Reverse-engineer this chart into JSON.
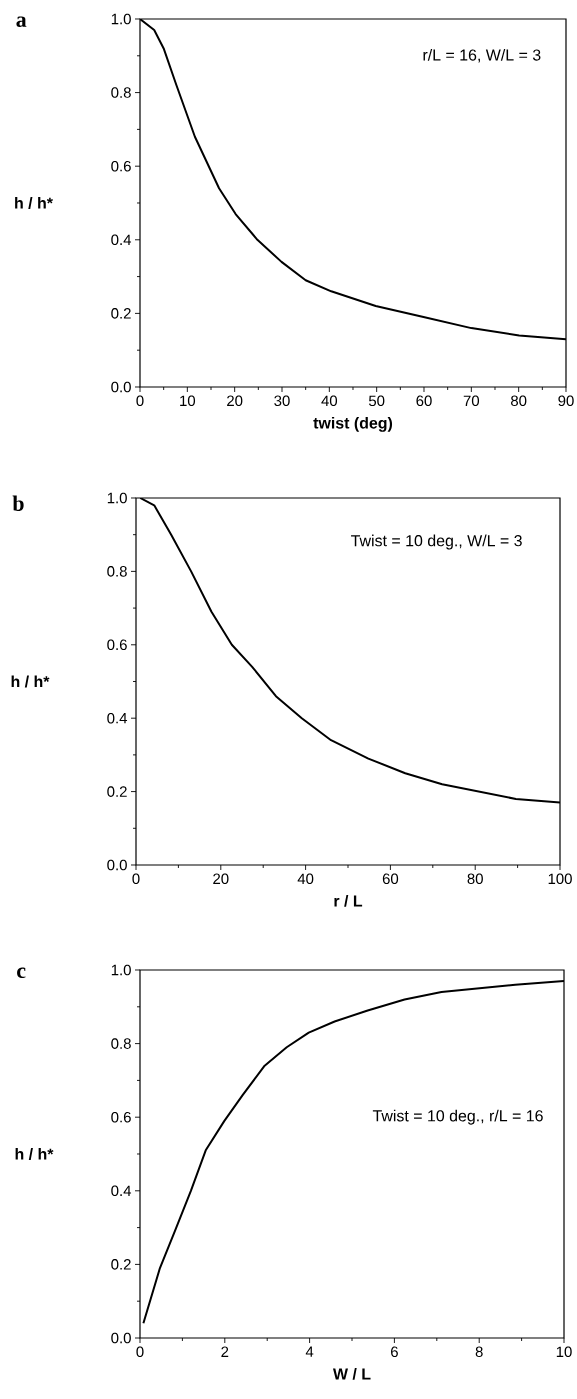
{
  "chart_data": [
    {
      "type": "line",
      "title": "a",
      "xlabel": "twist   (deg)",
      "ylabel": "h / h*",
      "annotations": [
        "r/L = 16,    W/L = 3"
      ],
      "xlim": [
        0,
        90
      ],
      "xticks": [
        0,
        10,
        20,
        30,
        40,
        50,
        60,
        70,
        80,
        90
      ],
      "ylim": [
        0,
        1
      ],
      "yticks": [
        {
          "value": 0,
          "label": "0.0"
        },
        {
          "value": 0.2,
          "label": "0.2"
        },
        {
          "value": 0.4,
          "label": "0.4"
        },
        {
          "value": 0.6,
          "label": "0.6"
        },
        {
          "value": 0.8,
          "label": "0.8"
        },
        {
          "value": 1,
          "label": "1.0"
        }
      ],
      "series": [
        {
          "color": "#000000",
          "x": [
            0,
            3,
            5,
            7.7,
            11.6,
            16.7,
            20.2,
            24.8,
            29.9,
            35,
            40.4,
            49.8,
            59.9,
            70,
            80.1,
            90
          ],
          "values": [
            1.0,
            0.97,
            0.92,
            0.82,
            0.68,
            0.54,
            0.47,
            0.4,
            0.34,
            0.29,
            0.26,
            0.22,
            0.19,
            0.16,
            0.14,
            0.13
          ]
        }
      ]
    },
    {
      "type": "line",
      "title": "b",
      "xlabel": "r / L",
      "ylabel": "h / h*",
      "annotations": [
        "Twist = 10 deg.,   W/L = 3"
      ],
      "xlim": [
        0,
        100
      ],
      "xticks": [
        0,
        20,
        40,
        60,
        80,
        100
      ],
      "ylim": [
        0,
        1
      ],
      "yticks": [
        {
          "value": 0,
          "label": "0.0"
        },
        {
          "value": 0.2,
          "label": "0.2"
        },
        {
          "value": 0.4,
          "label": "0.4"
        },
        {
          "value": 0.6,
          "label": "0.6"
        },
        {
          "value": 0.8,
          "label": "0.8"
        },
        {
          "value": 1,
          "label": "1.0"
        }
      ],
      "series": [
        {
          "color": "#000000",
          "x": [
            1,
            4.3,
            8.3,
            13,
            17.8,
            22.6,
            27.4,
            33,
            39.1,
            46,
            54.8,
            63.5,
            72.2,
            80.9,
            89.6,
            100
          ],
          "values": [
            1.0,
            0.98,
            0.9,
            0.8,
            0.69,
            0.6,
            0.54,
            0.46,
            0.4,
            0.34,
            0.29,
            0.25,
            0.22,
            0.2,
            0.18,
            0.17
          ]
        }
      ]
    },
    {
      "type": "line",
      "title": "c",
      "xlabel": "W / L",
      "ylabel": "h / h*",
      "annotations": [
        "Twist = 10 deg.,   r/L = 16"
      ],
      "xlim": [
        0,
        10
      ],
      "xticks": [
        0,
        2,
        4,
        6,
        8,
        10
      ],
      "ylim": [
        0,
        1
      ],
      "yticks": [
        {
          "value": 0,
          "label": "0.0"
        },
        {
          "value": 0.2,
          "label": "0.2"
        },
        {
          "value": 0.4,
          "label": "0.4"
        },
        {
          "value": 0.6,
          "label": "0.6"
        },
        {
          "value": 0.8,
          "label": "0.8"
        },
        {
          "value": 1,
          "label": "1.0"
        }
      ],
      "series": [
        {
          "color": "#000000",
          "x": [
            0.08,
            0.47,
            0.82,
            1.2,
            1.55,
            1.99,
            2.42,
            2.94,
            3.46,
            3.98,
            4.59,
            5.37,
            6.24,
            7.11,
            7.98,
            8.85,
            10
          ],
          "values": [
            0.04,
            0.19,
            0.29,
            0.4,
            0.51,
            0.59,
            0.66,
            0.74,
            0.79,
            0.83,
            0.86,
            0.89,
            0.92,
            0.94,
            0.95,
            0.96,
            0.97
          ]
        }
      ]
    }
  ]
}
